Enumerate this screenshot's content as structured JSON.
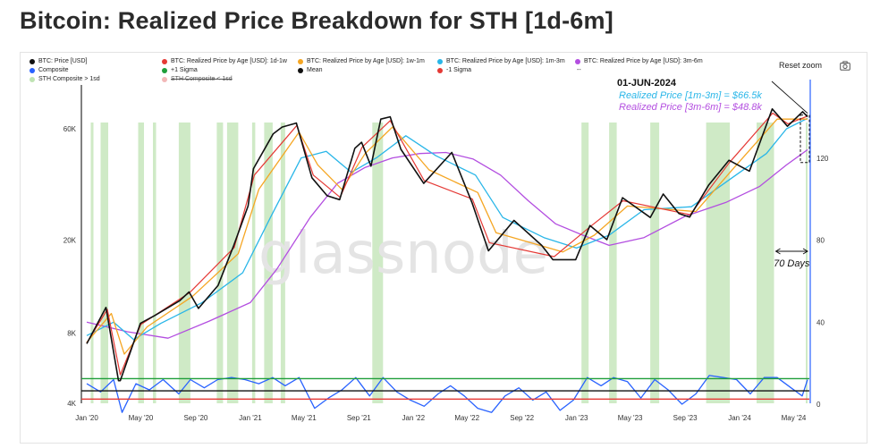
{
  "title": "Bitcoin: Realized Price Breakdown for STH [1d-6m]",
  "toolbar": {
    "reset_zoom": "Reset zoom",
    "camera_icon": "camera-icon"
  },
  "watermark": "glassnode",
  "legend": [
    {
      "label": "BTC: Price [USD]",
      "color": "#111111",
      "struck": false
    },
    {
      "label": "BTC: Realized Price by Age [USD]: 1d-1w",
      "color": "#e53935",
      "struck": false
    },
    {
      "label": "BTC: Realized Price by Age [USD]: 1w-1m",
      "color": "#f5a623",
      "struck": false
    },
    {
      "label": "BTC: Realized Price by Age [USD]: 1m-3m",
      "color": "#29b6e8",
      "struck": false
    },
    {
      "label": "BTC: Realized Price by Age [USD]: 3m-6m",
      "color": "#b34ee0",
      "struck": false
    },
    {
      "label": "Composite",
      "color": "#2962ff",
      "struck": false
    },
    {
      "label": "+1 Sigma",
      "color": "#1e9e3a",
      "struck": false
    },
    {
      "label": "Mean",
      "color": "#111111",
      "struck": false
    },
    {
      "label": "-1 Sigma",
      "color": "#e53935",
      "struck": false
    },
    {
      "label": "--",
      "color": "",
      "struck": false
    },
    {
      "label": "STH Composite > 1sd",
      "color": "#bfe3b3",
      "struck": false
    },
    {
      "label": "STH Composite < 1sd",
      "color": "#f2b8b8",
      "struck": true
    }
  ],
  "annotations": {
    "date": "01-JUN-2024",
    "rp_1m_3m": "Realized Price [1m-3m] = $66.5k",
    "rp_3m_6m": "Realized Price [3m-6m] = $48.8k",
    "days": "70 Days"
  },
  "chart_data": {
    "type": "line",
    "title": "Bitcoin: Realized Price Breakdown for STH [1d-6m]",
    "x_range": [
      "2019-12-20",
      "2024-06-05"
    ],
    "x_ticks": [
      "Jan '20",
      "May '20",
      "Sep '20",
      "Jan '21",
      "May '21",
      "Sep '21",
      "Jan '22",
      "May '22",
      "Sep '22",
      "Jan '23",
      "May '23",
      "Sep '23",
      "Jan '24",
      "May '24"
    ],
    "y_left": {
      "scale": "log",
      "ticks": [
        "4K",
        "8K",
        "20K",
        "60K"
      ]
    },
    "y_right": {
      "scale": "linear",
      "range": [
        0,
        150
      ],
      "ticks": [
        "0",
        "40",
        "80",
        "120"
      ]
    },
    "grid": false,
    "legend_position": "top-left",
    "price_series": [
      {
        "name": "BTC: Price [USD]",
        "axis": "left",
        "color": "#111111",
        "points": [
          [
            "2020-01-01",
            7200
          ],
          [
            "2020-02-13",
            10300
          ],
          [
            "2020-03-12",
            5000
          ],
          [
            "2020-03-16",
            5000
          ],
          [
            "2020-04-30",
            8800
          ],
          [
            "2020-06-01",
            9500
          ],
          [
            "2020-07-27",
            11000
          ],
          [
            "2020-08-17",
            12000
          ],
          [
            "2020-09-07",
            10200
          ],
          [
            "2020-10-21",
            12800
          ],
          [
            "2020-11-25",
            19000
          ],
          [
            "2020-12-27",
            28000
          ],
          [
            "2021-01-08",
            40500
          ],
          [
            "2021-02-21",
            57000
          ],
          [
            "2021-03-13",
            61000
          ],
          [
            "2021-04-14",
            63500
          ],
          [
            "2021-05-19",
            37000
          ],
          [
            "2021-06-22",
            31000
          ],
          [
            "2021-07-20",
            29800
          ],
          [
            "2021-08-23",
            49500
          ],
          [
            "2021-09-07",
            52500
          ],
          [
            "2021-09-28",
            41500
          ],
          [
            "2021-10-20",
            66000
          ],
          [
            "2021-11-10",
            67500
          ],
          [
            "2021-12-04",
            49000
          ],
          [
            "2022-01-24",
            35000
          ],
          [
            "2022-03-28",
            47500
          ],
          [
            "2022-05-12",
            29000
          ],
          [
            "2022-06-18",
            18000
          ],
          [
            "2022-08-14",
            24300
          ],
          [
            "2022-10-15",
            19000
          ],
          [
            "2022-11-09",
            16500
          ],
          [
            "2022-12-30",
            16500
          ],
          [
            "2023-01-31",
            23100
          ],
          [
            "2023-03-10",
            20100
          ],
          [
            "2023-04-14",
            30400
          ],
          [
            "2023-06-15",
            25000
          ],
          [
            "2023-07-14",
            31500
          ],
          [
            "2023-08-18",
            26000
          ],
          [
            "2023-09-11",
            25100
          ],
          [
            "2023-10-24",
            34500
          ],
          [
            "2023-12-08",
            44000
          ],
          [
            "2024-01-23",
            39500
          ],
          [
            "2024-03-14",
            73000
          ],
          [
            "2024-04-17",
            61500
          ],
          [
            "2024-05-21",
            71000
          ],
          [
            "2024-06-01",
            67500
          ]
        ]
      },
      {
        "name": "BTC: Realized Price by Age [USD]: 1d-1w",
        "axis": "left",
        "color": "#e53935",
        "points": [
          [
            "2020-01-01",
            7250
          ],
          [
            "2020-02-16",
            10100
          ],
          [
            "2020-03-16",
            5300
          ],
          [
            "2020-05-01",
            8700
          ],
          [
            "2020-08-18",
            11900
          ],
          [
            "2020-11-26",
            18600
          ],
          [
            "2021-01-10",
            38000
          ],
          [
            "2021-04-15",
            62000
          ],
          [
            "2021-05-22",
            38000
          ],
          [
            "2021-07-21",
            30500
          ],
          [
            "2021-09-08",
            50000
          ],
          [
            "2021-11-10",
            65000
          ],
          [
            "2022-01-25",
            36000
          ],
          [
            "2022-05-13",
            30000
          ],
          [
            "2022-06-20",
            19500
          ],
          [
            "2022-11-12",
            17000
          ],
          [
            "2023-01-31",
            22800
          ],
          [
            "2023-04-15",
            29500
          ],
          [
            "2023-09-12",
            25700
          ],
          [
            "2023-12-09",
            43000
          ],
          [
            "2024-03-15",
            70000
          ],
          [
            "2024-04-18",
            63000
          ],
          [
            "2024-06-01",
            68000
          ]
        ]
      },
      {
        "name": "BTC: Realized Price by Age [USD]: 1w-1m",
        "axis": "left",
        "color": "#f5a623",
        "points": [
          [
            "2020-01-01",
            7300
          ],
          [
            "2020-02-25",
            9700
          ],
          [
            "2020-03-25",
            6500
          ],
          [
            "2020-05-15",
            8500
          ],
          [
            "2020-08-25",
            11500
          ],
          [
            "2020-12-05",
            17500
          ],
          [
            "2021-01-20",
            33000
          ],
          [
            "2021-04-20",
            58000
          ],
          [
            "2021-06-01",
            42000
          ],
          [
            "2021-07-25",
            33000
          ],
          [
            "2021-09-15",
            47000
          ],
          [
            "2021-11-15",
            61000
          ],
          [
            "2022-02-05",
            40000
          ],
          [
            "2022-05-25",
            32000
          ],
          [
            "2022-07-05",
            21500
          ],
          [
            "2022-12-01",
            17800
          ],
          [
            "2023-02-10",
            21000
          ],
          [
            "2023-04-25",
            28000
          ],
          [
            "2023-09-25",
            26500
          ],
          [
            "2023-12-20",
            41000
          ],
          [
            "2024-03-25",
            66000
          ],
          [
            "2024-06-01",
            66000
          ]
        ]
      },
      {
        "name": "BTC: Realized Price by Age [USD]: 1m-3m",
        "axis": "left",
        "color": "#29b6e8",
        "points": [
          [
            "2020-01-01",
            7800
          ],
          [
            "2020-03-01",
            8900
          ],
          [
            "2020-04-15",
            7500
          ],
          [
            "2020-06-15",
            8800
          ],
          [
            "2020-09-15",
            10800
          ],
          [
            "2020-12-15",
            14500
          ],
          [
            "2021-02-15",
            25000
          ],
          [
            "2021-04-25",
            45000
          ],
          [
            "2021-06-20",
            48000
          ],
          [
            "2021-08-15",
            39000
          ],
          [
            "2021-10-10",
            45000
          ],
          [
            "2021-12-15",
            56000
          ],
          [
            "2022-02-20",
            46000
          ],
          [
            "2022-05-20",
            38000
          ],
          [
            "2022-07-20",
            25000
          ],
          [
            "2022-10-20",
            20500
          ],
          [
            "2023-01-01",
            18500
          ],
          [
            "2023-03-15",
            21000
          ],
          [
            "2023-06-01",
            27000
          ],
          [
            "2023-09-15",
            27800
          ],
          [
            "2023-12-15",
            37000
          ],
          [
            "2024-03-01",
            47000
          ],
          [
            "2024-04-15",
            60000
          ],
          [
            "2024-06-01",
            66500
          ]
        ]
      },
      {
        "name": "BTC: Realized Price by Age [USD]: 3m-6m",
        "axis": "left",
        "color": "#b34ee0",
        "points": [
          [
            "2020-01-01",
            8900
          ],
          [
            "2020-04-01",
            8100
          ],
          [
            "2020-07-01",
            7600
          ],
          [
            "2020-10-01",
            9000
          ],
          [
            "2021-01-01",
            10800
          ],
          [
            "2021-03-01",
            15000
          ],
          [
            "2021-05-15",
            25000
          ],
          [
            "2021-07-15",
            35000
          ],
          [
            "2021-09-15",
            41000
          ],
          [
            "2021-11-15",
            45000
          ],
          [
            "2022-01-15",
            47000
          ],
          [
            "2022-03-15",
            47500
          ],
          [
            "2022-05-15",
            44500
          ],
          [
            "2022-07-15",
            38000
          ],
          [
            "2022-09-15",
            29500
          ],
          [
            "2022-11-15",
            23500
          ],
          [
            "2023-01-15",
            21000
          ],
          [
            "2023-03-15",
            19000
          ],
          [
            "2023-06-01",
            20500
          ],
          [
            "2023-09-01",
            25300
          ],
          [
            "2023-12-01",
            29000
          ],
          [
            "2024-02-15",
            34000
          ],
          [
            "2024-04-15",
            42000
          ],
          [
            "2024-06-01",
            48800
          ]
        ]
      }
    ],
    "oscillator_series": [
      {
        "name": "Composite",
        "axis": "right",
        "color": "#2962ff",
        "points": [
          [
            "2020-01-01",
            10
          ],
          [
            "2020-02-01",
            6
          ],
          [
            "2020-03-01",
            12
          ],
          [
            "2020-03-20",
            -4
          ],
          [
            "2020-04-20",
            10
          ],
          [
            "2020-05-20",
            7
          ],
          [
            "2020-06-20",
            12
          ],
          [
            "2020-07-25",
            5
          ],
          [
            "2020-08-20",
            12
          ],
          [
            "2020-09-20",
            8
          ],
          [
            "2020-10-20",
            12
          ],
          [
            "2020-11-20",
            13
          ],
          [
            "2020-12-20",
            12
          ],
          [
            "2021-01-20",
            10
          ],
          [
            "2021-02-20",
            13
          ],
          [
            "2021-03-20",
            9
          ],
          [
            "2021-04-20",
            13
          ],
          [
            "2021-05-25",
            -2
          ],
          [
            "2021-06-25",
            3
          ],
          [
            "2021-07-25",
            7
          ],
          [
            "2021-08-25",
            13
          ],
          [
            "2021-09-25",
            4
          ],
          [
            "2021-10-25",
            13
          ],
          [
            "2021-11-25",
            6
          ],
          [
            "2021-12-25",
            2
          ],
          [
            "2022-01-25",
            -1
          ],
          [
            "2022-02-25",
            5
          ],
          [
            "2022-03-25",
            9
          ],
          [
            "2022-04-25",
            4
          ],
          [
            "2022-05-25",
            -2
          ],
          [
            "2022-06-25",
            -4
          ],
          [
            "2022-07-25",
            4
          ],
          [
            "2022-08-25",
            8
          ],
          [
            "2022-09-25",
            2
          ],
          [
            "2022-10-25",
            6
          ],
          [
            "2022-11-25",
            -3
          ],
          [
            "2022-12-25",
            2
          ],
          [
            "2023-01-25",
            13
          ],
          [
            "2023-02-25",
            9
          ],
          [
            "2023-03-25",
            13
          ],
          [
            "2023-04-25",
            11
          ],
          [
            "2023-05-25",
            3
          ],
          [
            "2023-06-25",
            12
          ],
          [
            "2023-07-25",
            7
          ],
          [
            "2023-08-25",
            0
          ],
          [
            "2023-09-25",
            5
          ],
          [
            "2023-10-25",
            14
          ],
          [
            "2023-11-25",
            13
          ],
          [
            "2023-12-25",
            12
          ],
          [
            "2024-01-25",
            5
          ],
          [
            "2024-02-25",
            13
          ],
          [
            "2024-03-25",
            13
          ],
          [
            "2024-04-25",
            8
          ],
          [
            "2024-05-20",
            4
          ],
          [
            "2024-06-01",
            12
          ]
        ]
      },
      {
        "name": "+1 Sigma",
        "axis": "right",
        "color": "#1e9e3a",
        "points": [
          [
            "2019-12-20",
            12.5
          ],
          [
            "2024-06-05",
            12.5
          ]
        ]
      },
      {
        "name": "Mean",
        "axis": "right",
        "color": "#111111",
        "points": [
          [
            "2019-12-20",
            6.5
          ],
          [
            "2024-06-05",
            6.5
          ]
        ]
      },
      {
        "name": "-1 Sigma",
        "axis": "right",
        "color": "#e53935",
        "points": [
          [
            "2019-12-20",
            2.5
          ],
          [
            "2024-06-05",
            2.5
          ]
        ]
      }
    ],
    "sth_composite_gt_1sd_periods": [
      [
        "2020-01-10",
        "2020-01-16"
      ],
      [
        "2020-02-01",
        "2020-02-18"
      ],
      [
        "2020-04-25",
        "2020-05-08"
      ],
      [
        "2020-05-28",
        "2020-06-04"
      ],
      [
        "2020-07-25",
        "2020-08-20"
      ],
      [
        "2020-10-18",
        "2020-11-01"
      ],
      [
        "2020-11-10",
        "2020-12-05"
      ],
      [
        "2021-01-05",
        "2021-01-12"
      ],
      [
        "2021-02-01",
        "2021-02-20"
      ],
      [
        "2021-03-10",
        "2021-03-20"
      ],
      [
        "2021-10-01",
        "2021-10-25"
      ],
      [
        "2023-01-12",
        "2023-01-28"
      ],
      [
        "2023-03-15",
        "2023-04-01"
      ],
      [
        "2023-06-15",
        "2023-07-05"
      ],
      [
        "2023-10-18",
        "2023-12-10"
      ],
      [
        "2024-02-08",
        "2024-03-18"
      ],
      [
        "2024-05-28",
        "2024-06-01"
      ]
    ]
  }
}
